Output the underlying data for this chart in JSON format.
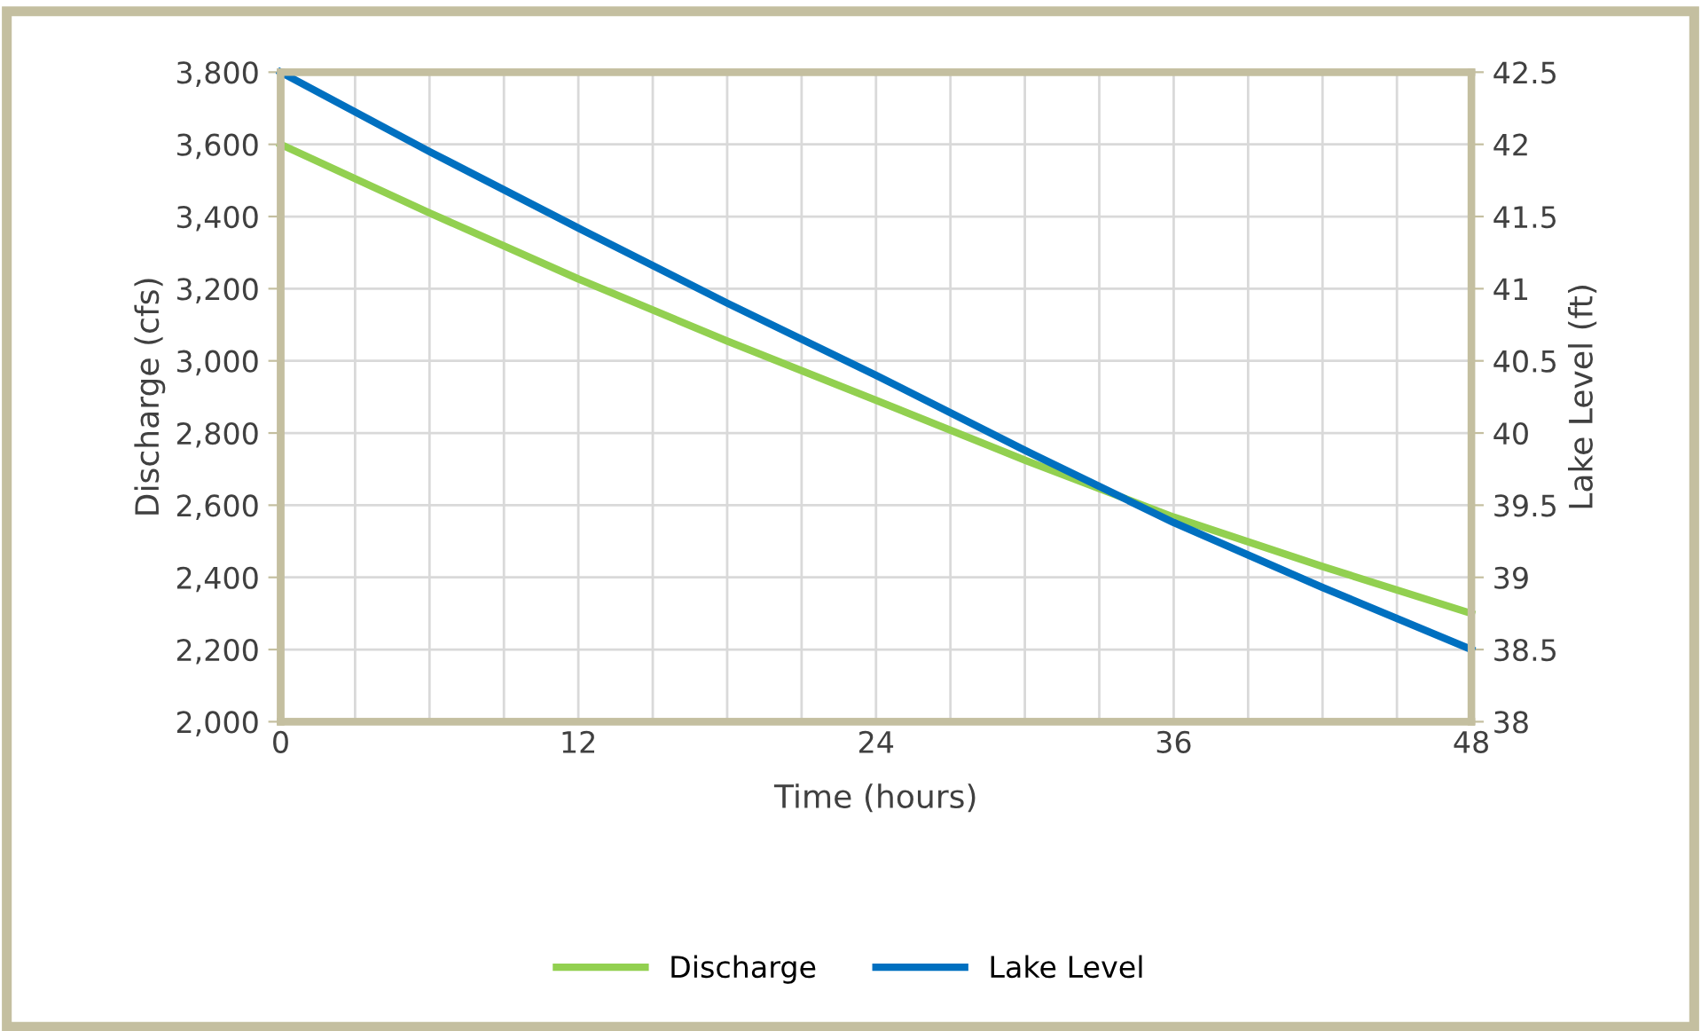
{
  "chart_data": {
    "type": "line",
    "xlabel": "Time (hours)",
    "ylabel": "Discharge (cfs)",
    "y2label": "Lake Level (ft)",
    "series": [
      {
        "name": "Discharge",
        "color": "#92d050",
        "x": [
          0,
          6,
          12,
          18,
          24,
          30,
          36,
          42,
          48
        ],
        "values": [
          3600,
          3410,
          3227,
          3055,
          2891,
          2725,
          2567,
          2430,
          2300
        ]
      },
      {
        "name": "Lake Level",
        "color": "#0070c0",
        "axis": "y2",
        "x": [
          0,
          6,
          12,
          18,
          24,
          30,
          36,
          42,
          48
        ],
        "values": [
          42.5,
          41.95,
          41.42,
          40.9,
          40.4,
          39.88,
          39.38,
          38.93,
          38.5
        ]
      }
    ],
    "xlim": [
      0,
      48
    ],
    "xticks": [
      0,
      {
        "value": 3,
        "label": null
      },
      {
        "value": 6,
        "label": null
      },
      {
        "value": 9,
        "label": null
      },
      12,
      {
        "value": 15,
        "label": null
      },
      {
        "value": 18,
        "label": null
      },
      {
        "value": 21,
        "label": null
      },
      24,
      {
        "value": 27,
        "label": null
      },
      {
        "value": 30,
        "label": null
      },
      {
        "value": 33,
        "label": null
      },
      36,
      {
        "value": 39,
        "label": null
      },
      {
        "value": 42,
        "label": null
      },
      {
        "value": 45,
        "label": null
      },
      48
    ],
    "ylim": [
      2000,
      3800
    ],
    "yticks": [
      {
        "value": 2000,
        "label": "2,000"
      },
      {
        "value": 2200,
        "label": "2,200"
      },
      {
        "value": 2400,
        "label": "2,400"
      },
      {
        "value": 2600,
        "label": "2,600"
      },
      {
        "value": 2800,
        "label": "2,800"
      },
      {
        "value": 3000,
        "label": "3,000"
      },
      {
        "value": 3200,
        "label": "3,200"
      },
      {
        "value": 3400,
        "label": "3,400"
      },
      {
        "value": 3600,
        "label": "3,600"
      },
      {
        "value": 3800,
        "label": "3,800"
      }
    ],
    "y2lim": [
      38,
      42.5
    ],
    "y2ticks": [
      38,
      38.5,
      39,
      39.5,
      40,
      40.5,
      41,
      41.5,
      42,
      42.5
    ],
    "grid": true,
    "legend": "bottom",
    "marker": "none",
    "line_style": "solid"
  }
}
